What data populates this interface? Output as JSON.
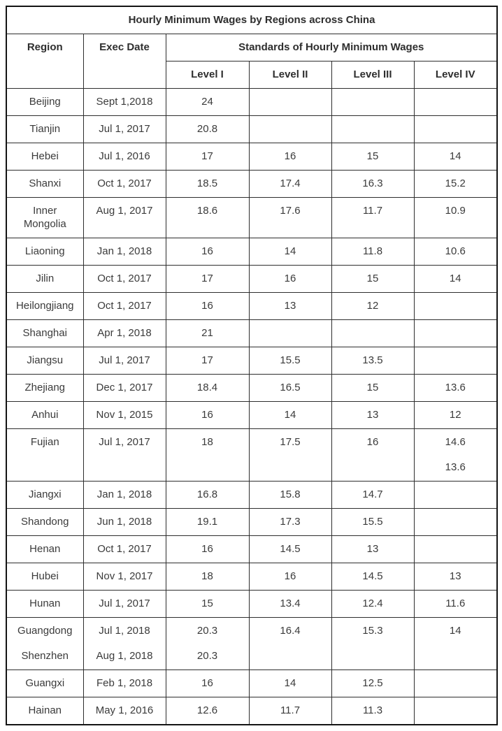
{
  "chart_data": {
    "type": "table",
    "title": "Hourly Minimum Wages by Regions across China",
    "header": {
      "region": "Region",
      "exec_date": "Exec Date",
      "standards_group": "Standards of Hourly Minimum Wages",
      "levels": [
        "Level I",
        "Level II",
        "Level III",
        "Level IV"
      ]
    },
    "columns": [
      "Region",
      "Exec Date",
      "Level I",
      "Level II",
      "Level III",
      "Level IV"
    ],
    "rows": [
      {
        "cells": [
          [
            "Beijing"
          ],
          [
            "Sept 1,2018"
          ],
          [
            "24"
          ],
          [],
          [],
          []
        ]
      },
      {
        "cells": [
          [
            "Tianjin"
          ],
          [
            "Jul 1, 2017"
          ],
          [
            "20.8"
          ],
          [],
          [],
          []
        ]
      },
      {
        "cells": [
          [
            "Hebei"
          ],
          [
            "Jul 1, 2016"
          ],
          [
            "17"
          ],
          [
            "16"
          ],
          [
            "15"
          ],
          [
            "14"
          ]
        ]
      },
      {
        "cells": [
          [
            "Shanxi"
          ],
          [
            "Oct 1, 2017"
          ],
          [
            "18.5"
          ],
          [
            "17.4"
          ],
          [
            "16.3"
          ],
          [
            "15.2"
          ]
        ]
      },
      {
        "cells": [
          [
            "Inner Mongolia"
          ],
          [
            "Aug 1, 2017"
          ],
          [
            "18.6"
          ],
          [
            "17.6"
          ],
          [
            "11.7"
          ],
          [
            "10.9"
          ]
        ]
      },
      {
        "cells": [
          [
            "Liaoning"
          ],
          [
            "Jan 1, 2018"
          ],
          [
            "16"
          ],
          [
            "14"
          ],
          [
            "11.8"
          ],
          [
            "10.6"
          ]
        ]
      },
      {
        "cells": [
          [
            "Jilin"
          ],
          [
            "Oct 1, 2017"
          ],
          [
            "17"
          ],
          [
            "16"
          ],
          [
            "15"
          ],
          [
            "14"
          ]
        ]
      },
      {
        "cells": [
          [
            "Heilongjiang"
          ],
          [
            "Oct 1, 2017"
          ],
          [
            "16"
          ],
          [
            "13"
          ],
          [
            "12"
          ],
          []
        ]
      },
      {
        "cells": [
          [
            "Shanghai"
          ],
          [
            "Apr 1, 2018"
          ],
          [
            "21"
          ],
          [],
          [],
          []
        ]
      },
      {
        "cells": [
          [
            "Jiangsu"
          ],
          [
            "Jul 1, 2017"
          ],
          [
            "17"
          ],
          [
            "15.5"
          ],
          [
            "13.5"
          ],
          []
        ]
      },
      {
        "cells": [
          [
            "Zhejiang"
          ],
          [
            "Dec 1, 2017"
          ],
          [
            "18.4"
          ],
          [
            "16.5"
          ],
          [
            "15"
          ],
          [
            "13.6"
          ]
        ]
      },
      {
        "cells": [
          [
            "Anhui"
          ],
          [
            "Nov 1, 2015"
          ],
          [
            "16"
          ],
          [
            "14"
          ],
          [
            "13"
          ],
          [
            "12"
          ]
        ]
      },
      {
        "cells": [
          [
            "Fujian"
          ],
          [
            "Jul 1, 2017"
          ],
          [
            "18"
          ],
          [
            "17.5"
          ],
          [
            "16"
          ],
          [
            "14.6",
            "13.6"
          ]
        ]
      },
      {
        "cells": [
          [
            "Jiangxi"
          ],
          [
            "Jan 1, 2018"
          ],
          [
            "16.8"
          ],
          [
            "15.8"
          ],
          [
            "14.7"
          ],
          []
        ]
      },
      {
        "cells": [
          [
            "Shandong"
          ],
          [
            "Jun 1, 2018"
          ],
          [
            "19.1"
          ],
          [
            "17.3"
          ],
          [
            "15.5"
          ],
          []
        ]
      },
      {
        "cells": [
          [
            "Henan"
          ],
          [
            "Oct 1, 2017"
          ],
          [
            "16"
          ],
          [
            "14.5"
          ],
          [
            "13"
          ],
          []
        ]
      },
      {
        "cells": [
          [
            "Hubei"
          ],
          [
            "Nov 1, 2017"
          ],
          [
            "18"
          ],
          [
            "16"
          ],
          [
            "14.5"
          ],
          [
            "13"
          ]
        ]
      },
      {
        "cells": [
          [
            "Hunan"
          ],
          [
            "Jul 1, 2017"
          ],
          [
            "15"
          ],
          [
            "13.4"
          ],
          [
            "12.4"
          ],
          [
            "11.6"
          ]
        ]
      },
      {
        "cells": [
          [
            "Guangdong",
            "Shenzhen"
          ],
          [
            "Jul 1, 2018",
            "Aug 1, 2018"
          ],
          [
            "20.3",
            "20.3"
          ],
          [
            "16.4"
          ],
          [
            "15.3"
          ],
          [
            "14"
          ]
        ]
      },
      {
        "cells": [
          [
            "Guangxi"
          ],
          [
            "Feb 1, 2018"
          ],
          [
            "16"
          ],
          [
            "14"
          ],
          [
            "12.5"
          ],
          []
        ]
      },
      {
        "cells": [
          [
            "Hainan"
          ],
          [
            "May 1, 2016"
          ],
          [
            "12.6"
          ],
          [
            "11.7"
          ],
          [
            "11.3"
          ],
          []
        ]
      }
    ]
  },
  "colors": {
    "text": "#3b3b3b",
    "header_text": "#2e2e2e",
    "border": "#2e2e2e",
    "outer_border": "#141414",
    "background": "#ffffff"
  }
}
